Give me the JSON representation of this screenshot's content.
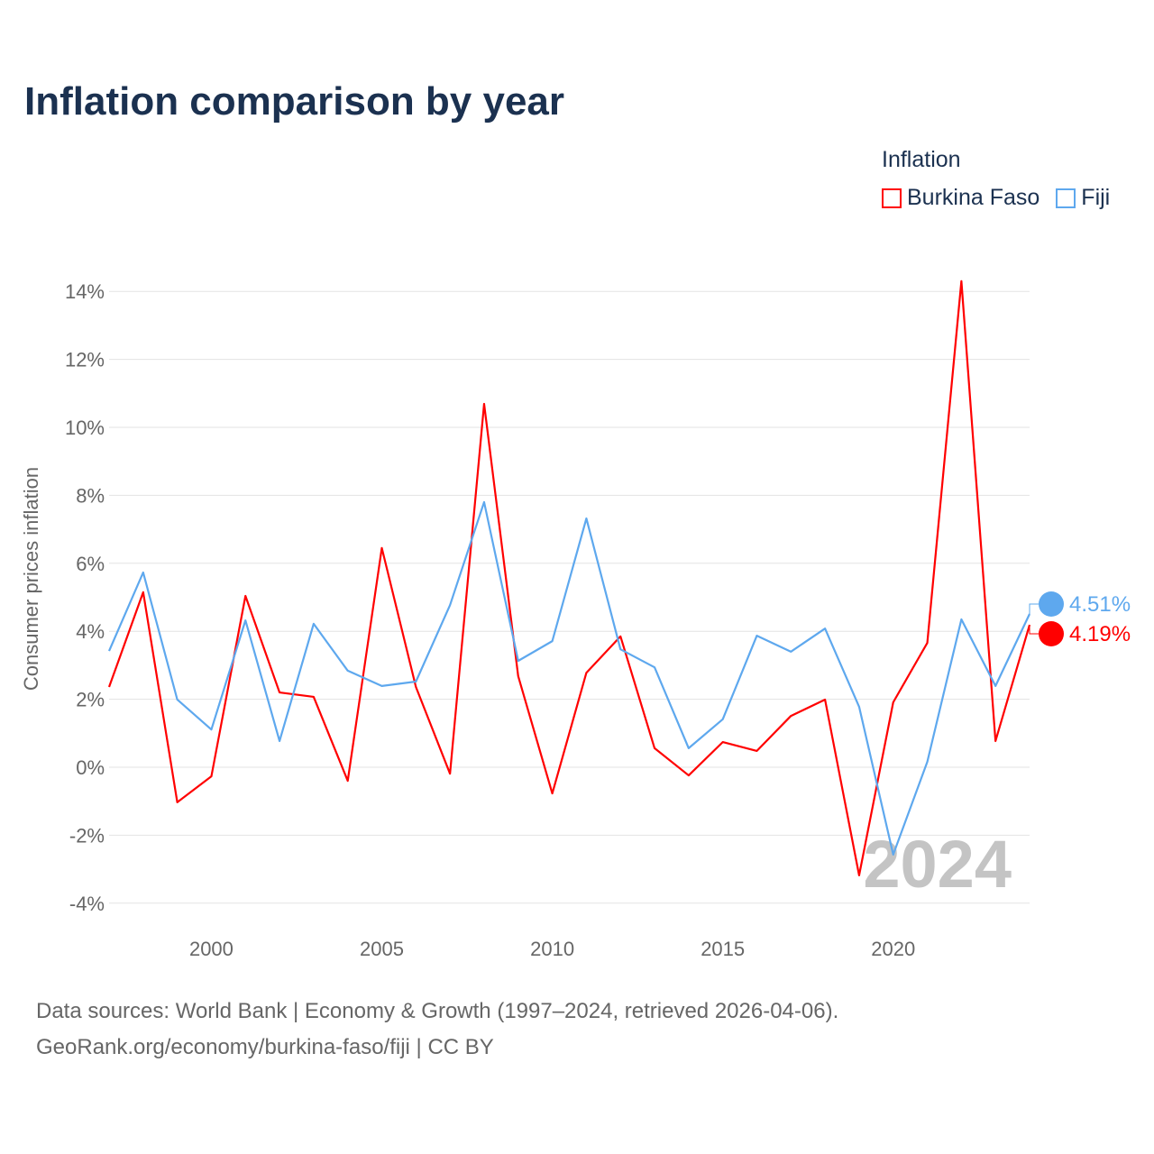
{
  "chart_data": {
    "type": "line",
    "title": "Inflation comparison by year",
    "legend_title": "Inflation",
    "ylabel": "Consumer prices inflation",
    "xlabel": "",
    "ylim": [
      -4,
      14.5
    ],
    "xlim": [
      1997,
      2024
    ],
    "yticks": [
      "-4%",
      "-2%",
      "0%",
      "2%",
      "4%",
      "6%",
      "8%",
      "10%",
      "12%",
      "14%"
    ],
    "ytick_values": [
      -4,
      -2,
      0,
      2,
      4,
      6,
      8,
      10,
      12,
      14
    ],
    "xticks": [
      "2000",
      "2005",
      "2010",
      "2015",
      "2020"
    ],
    "xtick_values": [
      2000,
      2005,
      2010,
      2015,
      2020
    ],
    "grid": true,
    "watermark_year": "2024",
    "x": [
      1997,
      1998,
      1999,
      2000,
      2001,
      2002,
      2003,
      2004,
      2005,
      2006,
      2007,
      2008,
      2009,
      2010,
      2011,
      2012,
      2013,
      2014,
      2015,
      2016,
      2017,
      2018,
      2019,
      2020,
      2021,
      2022,
      2023,
      2024
    ],
    "series": [
      {
        "name": "Burkina Faso",
        "color": "#ff0000",
        "end_label": "4.19%",
        "values": [
          2.36,
          5.15,
          -1.03,
          -0.27,
          5.04,
          2.2,
          2.07,
          -0.4,
          6.45,
          2.36,
          -0.19,
          10.69,
          2.68,
          -0.77,
          2.78,
          3.85,
          0.56,
          -0.24,
          0.74,
          0.48,
          1.51,
          1.99,
          -3.18,
          1.91,
          3.66,
          14.3,
          0.77,
          4.19
        ]
      },
      {
        "name": "Fiji",
        "color": "#5ea8ee",
        "end_label": "4.51%",
        "values": [
          3.42,
          5.73,
          1.99,
          1.11,
          4.32,
          0.77,
          4.22,
          2.84,
          2.39,
          2.52,
          4.77,
          7.8,
          3.13,
          3.71,
          7.32,
          3.47,
          2.94,
          0.56,
          1.41,
          3.87,
          3.4,
          4.08,
          1.78,
          -2.57,
          0.16,
          4.35,
          2.39,
          4.51
        ]
      }
    ]
  },
  "source_line1": "Data sources: World Bank | Economy & Growth (1997–2024, retrieved 2026-04-06).",
  "source_line2": "GeoRank.org/economy/burkina-faso/fiji | CC BY"
}
